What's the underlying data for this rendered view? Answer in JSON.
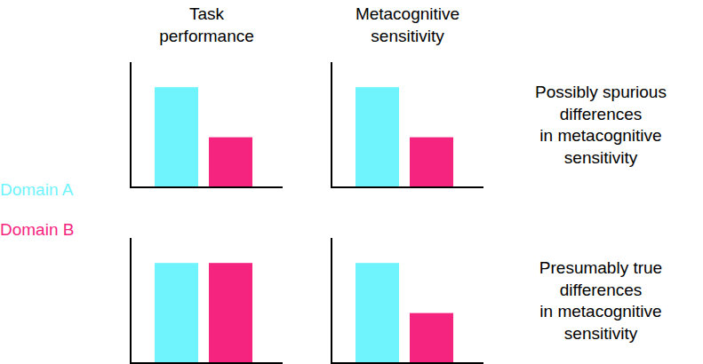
{
  "chart_data": [
    {
      "type": "bar",
      "title": "Task performance",
      "legend": "left",
      "series": [
        {
          "name": "Domain A",
          "color": "#6ff3fd",
          "values": [
            0.8
          ]
        },
        {
          "name": "Domain B",
          "color": "#f5247f",
          "values": [
            0.4
          ]
        }
      ],
      "ylim": [
        0,
        1
      ],
      "yticks": [],
      "tick_labels": false
    },
    {
      "type": "bar",
      "title": "Metacognitive sensitivity",
      "annotations": [
        "Possibly spurious",
        "differences",
        "in metacognitive",
        "sensitivity"
      ],
      "series": [
        {
          "color": "#6ff3fd",
          "values": [
            0.8
          ]
        },
        {
          "color": "#f5247f",
          "values": [
            0.4
          ]
        }
      ],
      "ylim": [
        0,
        1
      ],
      "yticks": [],
      "tick_labels": false
    },
    {
      "type": "bar",
      "series": [
        {
          "color": "#6ff3fd",
          "values": [
            0.8
          ]
        },
        {
          "color": "#f5247f",
          "values": [
            0.8
          ]
        }
      ],
      "ylim": [
        0,
        1
      ],
      "yticks": [],
      "tick_labels": false
    },
    {
      "type": "bar",
      "annotations": [
        "Presumably true",
        "differences",
        "in metacognitive",
        "sensitivity"
      ],
      "series": [
        {
          "color": "#6ff3fd",
          "values": [
            0.8
          ]
        },
        {
          "color": "#f5247f",
          "values": [
            0.4
          ]
        }
      ],
      "ylim": [
        0,
        1
      ],
      "yticks": [],
      "tick_labels": false
    }
  ]
}
